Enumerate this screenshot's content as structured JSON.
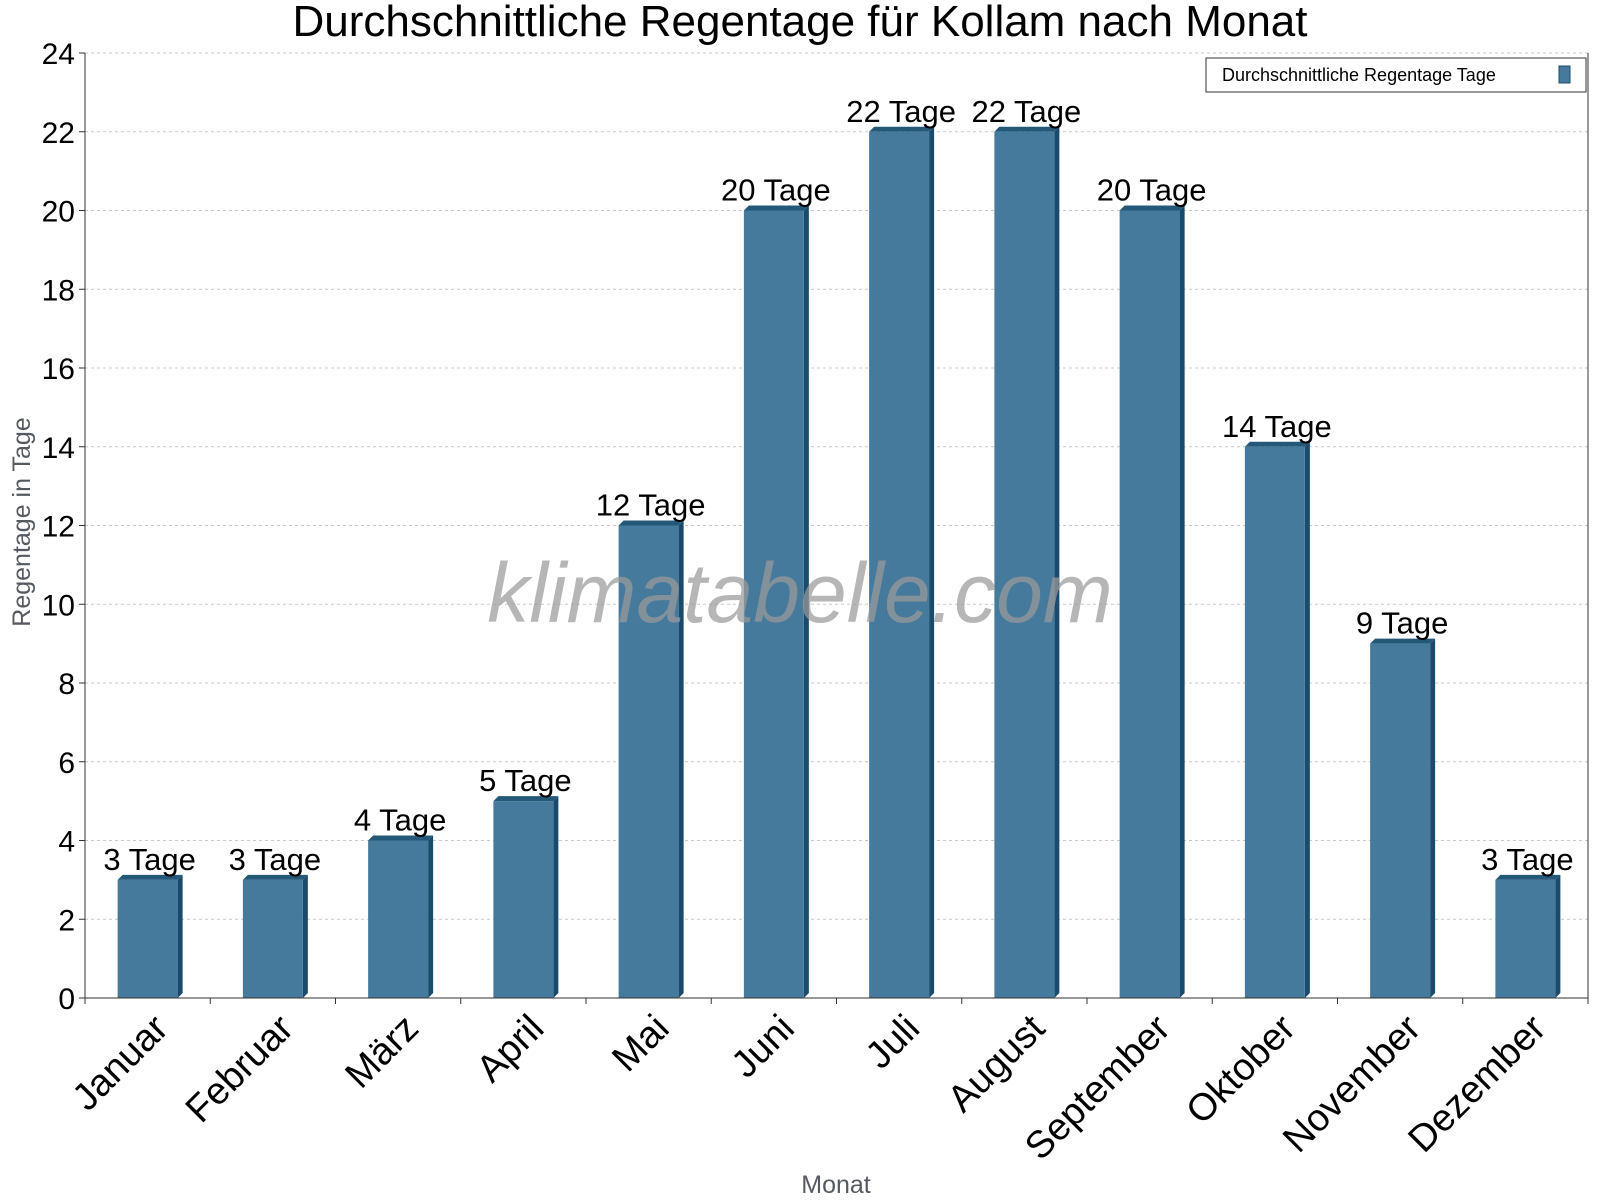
{
  "colors": {
    "bar_front": "#467a9c",
    "bar_side": "#1b4b6c",
    "bar_top": "#245878",
    "grid": "#c8c8c8",
    "axis": "#333333"
  },
  "watermark": "klimatabelle.com",
  "chart_data": {
    "type": "bar",
    "title": "Durchschnittliche Regentage für Kollam nach Monat",
    "xlabel": "Monat",
    "ylabel": "Regentage in Tage",
    "ylim": [
      0,
      24
    ],
    "yticks": [
      "0",
      "2",
      "4",
      "6",
      "8",
      "10",
      "12",
      "14",
      "16",
      "18",
      "20",
      "22",
      "24"
    ],
    "grid": true,
    "legend_position": "top-right",
    "categories": [
      "Januar",
      "Februar",
      "März",
      "April",
      "Mai",
      "Juni",
      "Juli",
      "August",
      "September",
      "Oktober",
      "November",
      "Dezember"
    ],
    "series": [
      {
        "name": "Durchschnittliche Regentage Tage",
        "values": [
          3,
          3,
          4,
          5,
          12,
          20,
          22,
          22,
          20,
          14,
          9,
          3
        ],
        "labels": [
          "3 Tage",
          "3 Tage",
          "4 Tage",
          "5 Tage",
          "12 Tage",
          "20 Tage",
          "22 Tage",
          "22 Tage",
          "20 Tage",
          "14 Tage",
          "9 Tage",
          "3 Tage"
        ]
      }
    ]
  }
}
